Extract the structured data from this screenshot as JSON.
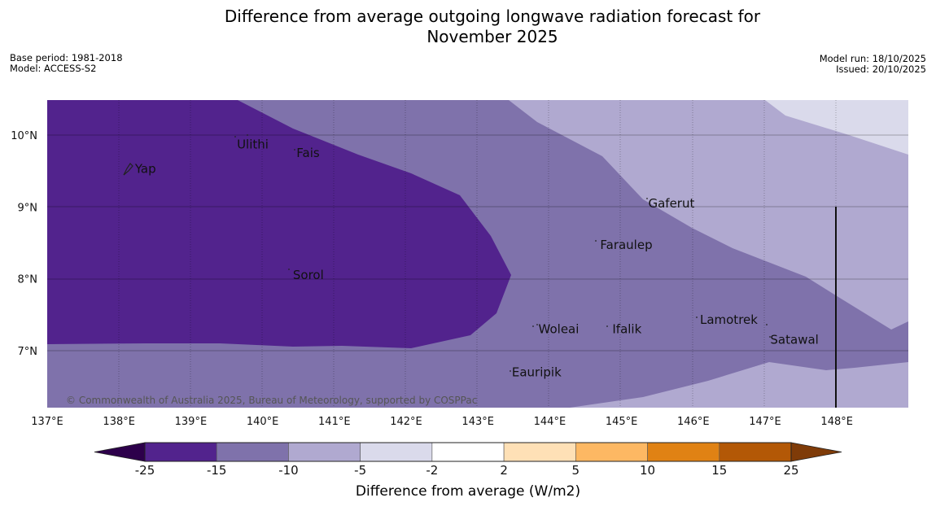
{
  "title_line1": "Difference from average outgoing longwave radiation forecast for",
  "title_line2": "November 2025",
  "base_period": "Base period: 1981-2018",
  "model": "Model: ACCESS-S2",
  "model_run": "Model run: 18/10/2025",
  "issued": "Issued: 20/10/2025",
  "copyright": "© Commonwealth of Australia 2025, Bureau of Meteorology, supported by COSPPac",
  "lon_ticks": [
    "137°E",
    "138°E",
    "139°E",
    "140°E",
    "141°E",
    "142°E",
    "143°E",
    "144°E",
    "145°E",
    "146°E",
    "147°E",
    "148°E"
  ],
  "lat_ticks": [
    "10°N",
    "9°N",
    "8°N",
    "7°N"
  ],
  "places": [
    {
      "name": "Yap",
      "lon": 138.2,
      "lat": 9.53
    },
    {
      "name": "Ulithi",
      "lon": 139.62,
      "lat": 9.87
    },
    {
      "name": "Fais",
      "lon": 140.45,
      "lat": 9.75
    },
    {
      "name": "Sorol",
      "lon": 140.4,
      "lat": 8.05
    },
    {
      "name": "Gaferut",
      "lon": 145.35,
      "lat": 9.05
    },
    {
      "name": "Faraulep",
      "lon": 144.68,
      "lat": 8.47
    },
    {
      "name": "Woleai",
      "lon": 143.82,
      "lat": 7.3
    },
    {
      "name": "Ifalik",
      "lon": 144.85,
      "lat": 7.3
    },
    {
      "name": "Lamotrek",
      "lon": 146.07,
      "lat": 7.43
    },
    {
      "name": "Satawal",
      "lon": 147.05,
      "lat": 7.15
    },
    {
      "name": "Eauripik",
      "lon": 143.45,
      "lat": 6.7
    }
  ],
  "colorbar": {
    "ticks": [
      "-25",
      "-15",
      "-10",
      "-5",
      "-2",
      "2",
      "5",
      "10",
      "15",
      "25"
    ],
    "colors": [
      "#52238d",
      "#7f72ab",
      "#b0a9d0",
      "#dadaeb",
      "#ffffff",
      "#fee0b6",
      "#fdb863",
      "#e08214",
      "#b35806"
    ],
    "min_extend_color": "#2d004b",
    "max_extend_color": "#7f3b08",
    "label": "Difference from average (W/m2)"
  },
  "colors": {
    "band_lt_minus15": "#52238d",
    "band_minus15_minus10": "#7f72ab",
    "band_minus10_minus5": "#b0a9d0",
    "band_minus5_minus2": "#dadaeb"
  }
}
